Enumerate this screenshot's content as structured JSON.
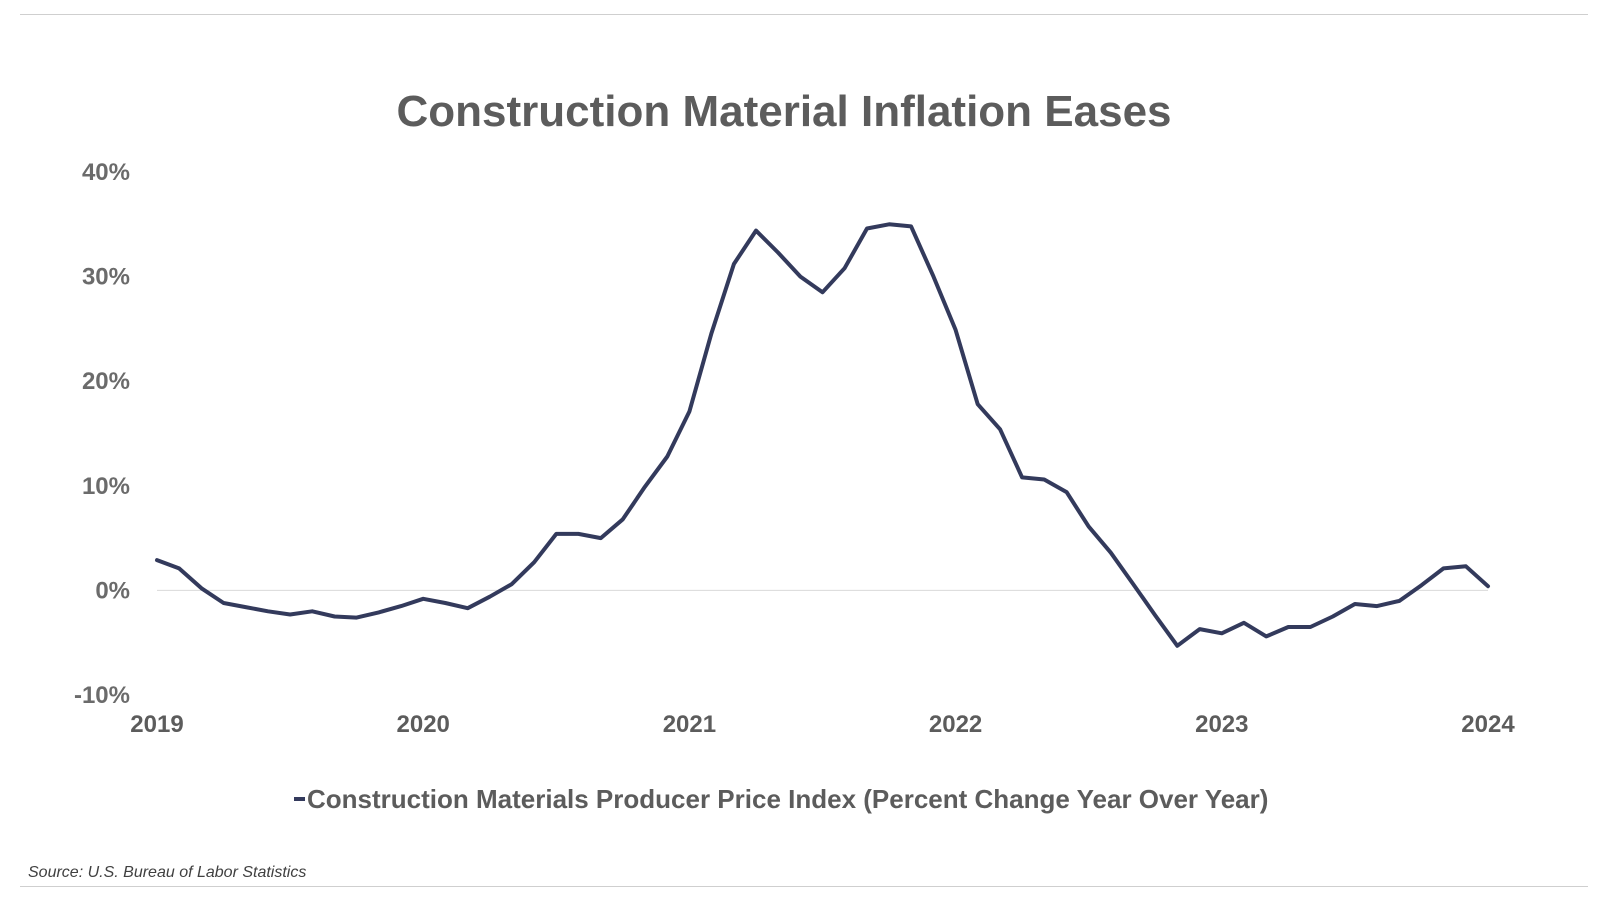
{
  "chart_data": {
    "type": "line",
    "title": "Construction Material Inflation Eases",
    "xlabel": "",
    "ylabel": "",
    "ylim": [
      -10,
      40
    ],
    "xlim": [
      2019,
      2024
    ],
    "yticks": [
      {
        "value": 40,
        "label": "40%"
      },
      {
        "value": 30,
        "label": "30%"
      },
      {
        "value": 20,
        "label": "20%"
      },
      {
        "value": 10,
        "label": "10%"
      },
      {
        "value": 0,
        "label": "0%"
      },
      {
        "value": -10,
        "label": "-10%"
      }
    ],
    "xticks": [
      {
        "value": 2019,
        "label": "2019"
      },
      {
        "value": 2020,
        "label": "2020"
      },
      {
        "value": 2021,
        "label": "2021"
      },
      {
        "value": 2022,
        "label": "2022"
      },
      {
        "value": 2023,
        "label": "2023"
      },
      {
        "value": 2024,
        "label": "2024"
      }
    ],
    "legend_position": "bottom-center",
    "zero_line": true,
    "series": [
      {
        "name": "Construction Materials Producer Price Index (Percent Change Year Over Year)",
        "color": "#333a5c",
        "points": [
          [
            2019.0,
            2.9
          ],
          [
            2019.083,
            2.1
          ],
          [
            2019.167,
            0.2
          ],
          [
            2019.25,
            -1.2
          ],
          [
            2019.333,
            -1.6
          ],
          [
            2019.417,
            -2.0
          ],
          [
            2019.5,
            -2.3
          ],
          [
            2019.583,
            -2.0
          ],
          [
            2019.667,
            -2.5
          ],
          [
            2019.75,
            -2.6
          ],
          [
            2019.833,
            -2.1
          ],
          [
            2019.917,
            -1.5
          ],
          [
            2020.0,
            -0.8
          ],
          [
            2020.083,
            -1.2
          ],
          [
            2020.167,
            -1.7
          ],
          [
            2020.25,
            -0.6
          ],
          [
            2020.333,
            0.6
          ],
          [
            2020.417,
            2.7
          ],
          [
            2020.5,
            5.4
          ],
          [
            2020.583,
            5.4
          ],
          [
            2020.667,
            5.0
          ],
          [
            2020.75,
            6.8
          ],
          [
            2020.833,
            9.9
          ],
          [
            2020.917,
            12.8
          ],
          [
            2021.0,
            17.1
          ],
          [
            2021.083,
            24.6
          ],
          [
            2021.167,
            31.2
          ],
          [
            2021.25,
            34.4
          ],
          [
            2021.333,
            32.3
          ],
          [
            2021.417,
            30.0
          ],
          [
            2021.5,
            28.5
          ],
          [
            2021.583,
            30.8
          ],
          [
            2021.667,
            34.6
          ],
          [
            2021.75,
            35.0
          ],
          [
            2021.833,
            34.8
          ],
          [
            2021.917,
            30.0
          ],
          [
            2022.0,
            24.9
          ],
          [
            2022.083,
            17.8
          ],
          [
            2022.167,
            15.4
          ],
          [
            2022.25,
            10.8
          ],
          [
            2022.333,
            10.6
          ],
          [
            2022.417,
            9.4
          ],
          [
            2022.5,
            6.1
          ],
          [
            2022.583,
            3.6
          ],
          [
            2022.667,
            0.6
          ],
          [
            2022.75,
            -2.4
          ],
          [
            2022.833,
            -5.3
          ],
          [
            2022.917,
            -3.7
          ],
          [
            2023.0,
            -4.1
          ],
          [
            2023.083,
            -3.1
          ],
          [
            2023.167,
            -4.4
          ],
          [
            2023.25,
            -3.5
          ],
          [
            2023.333,
            -3.5
          ],
          [
            2023.417,
            -2.5
          ],
          [
            2023.5,
            -1.3
          ],
          [
            2023.583,
            -1.5
          ],
          [
            2023.667,
            -1.0
          ],
          [
            2023.75,
            0.5
          ],
          [
            2023.833,
            2.1
          ],
          [
            2023.917,
            2.3
          ],
          [
            2024.0,
            0.4
          ]
        ]
      }
    ]
  },
  "footer": {
    "source": "Source: U.S. Bureau of Labor Statistics"
  }
}
